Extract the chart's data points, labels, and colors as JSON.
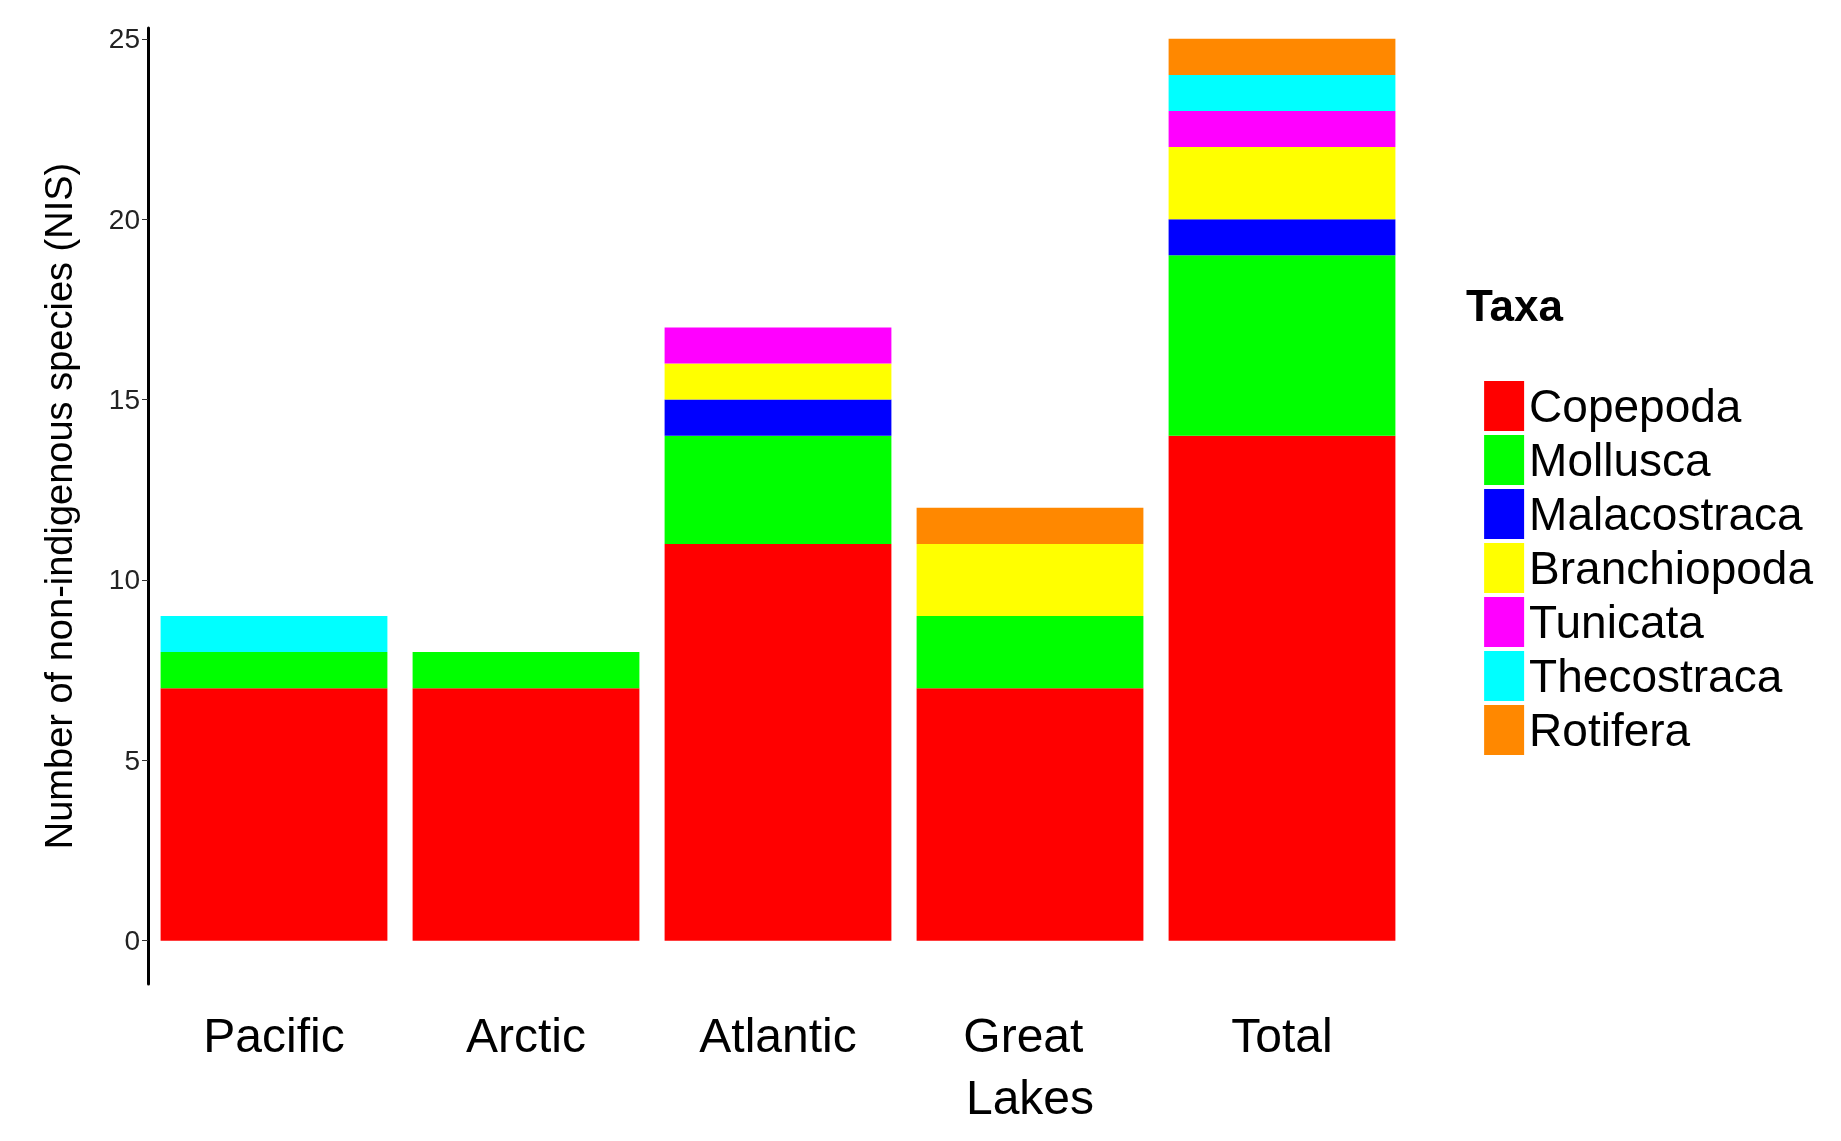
{
  "chart_data": {
    "type": "bar",
    "stacked": true,
    "ylabel": "Number of non-indigenous species (NIS)",
    "legend_title": "Taxa",
    "legend": "right",
    "grid": false,
    "categories": [
      "Pacific",
      "Arctic",
      "Atlantic",
      "Great Lakes",
      "Total"
    ],
    "ylim": [
      -1.2,
      25.3
    ],
    "yticks": [
      0,
      5,
      10,
      15,
      20,
      25
    ],
    "series": [
      {
        "name": "Copepoda",
        "color": "#ff0000",
        "values": [
          7,
          7,
          11,
          7,
          14
        ]
      },
      {
        "name": "Mollusca",
        "color": "#00ff00",
        "values": [
          1,
          1,
          3,
          2,
          5
        ]
      },
      {
        "name": "Malacostraca",
        "color": "#0000ff",
        "values": [
          null,
          null,
          1,
          null,
          1
        ]
      },
      {
        "name": "Branchiopoda",
        "color": "#ffff00",
        "values": [
          null,
          null,
          1,
          2,
          2
        ]
      },
      {
        "name": "Tunicata",
        "color": "#ff00ff",
        "values": [
          null,
          null,
          1,
          null,
          1
        ]
      },
      {
        "name": "Thecostraca",
        "color": "#00ffff",
        "values": [
          1,
          null,
          null,
          null,
          1
        ]
      },
      {
        "name": "Rotifera",
        "color": "#ff8800",
        "values": [
          null,
          null,
          null,
          1,
          1
        ]
      }
    ]
  }
}
